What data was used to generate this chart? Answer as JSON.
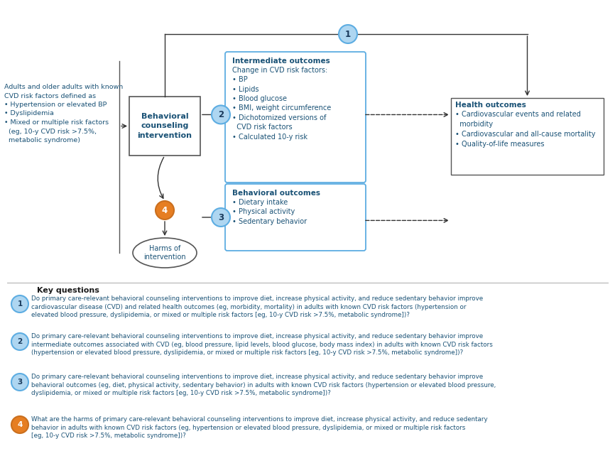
{
  "bg_color": "#ffffff",
  "text_color_blue": "#1a5276",
  "text_color_dark": "#1a1a1a",
  "circle_blue_fill": "#aed6f1",
  "circle_blue_edge": "#5dade2",
  "circle_orange_fill": "#e67e22",
  "circle_orange_edge": "#ca6f1e",
  "box_edge_blue": "#5dade2",
  "box_edge_dark": "#555555",
  "kq_title": "Key questions",
  "population_text": "Adults and older adults with known\nCVD risk factors defined as\n• Hypertension or elevated BP\n• Dyslipidemia\n• Mixed or multiple risk factors\n  (eg, 10-y CVD risk >7.5%,\n  metabolic syndrome)",
  "intervention_text": "Behavioral\ncounseling\nintervention",
  "intermediate_title": "Intermediate outcomes",
  "intermediate_body": "Change in CVD risk factors:\n• BP\n• Lipids\n• Blood glucose\n• BMI, weight circumference\n• Dichotomized versions of\n  CVD risk factors\n• Calculated 10-y risk",
  "behavioral_title": "Behavioral outcomes",
  "behavioral_body": "• Dietary intake\n• Physical activity\n• Sedentary behavior",
  "health_title": "Health outcomes",
  "health_body": "• Cardiovascular events and related\n  morbidity\n• Cardiovascular and all-cause mortality\n• Quality-of-life measures",
  "harms_text": "Harms of\nintervention",
  "kq1_text": "Do primary care-relevant behavioral counseling interventions to improve diet, increase physical activity, and reduce sedentary behavior improve\ncardiovascular disease (CVD) and related health outcomes (eg, morbidity, mortality) in adults with known CVD risk factors (hypertension or\nelevated blood pressure, dyslipidemia, or mixed or multiple risk factors [eg, 10-y CVD risk >7.5%, metabolic syndrome])?",
  "kq2_text": "Do primary care-relevant behavioral counseling interventions to improve diet, increase physical activity, and reduce sedentary behavior improve\nintermediate outcomes associated with CVD (eg, blood pressure, lipid levels, blood glucose, body mass index) in adults with known CVD risk factors\n(hypertension or elevated blood pressure, dyslipidemia, or mixed or multiple risk factors [eg, 10-y CVD risk >7.5%, metabolic syndrome])?",
  "kq3_text": "Do primary care-relevant behavioral counseling interventions to improve diet, increase physical activity, and reduce sedentary behavior improve\nbehavioral outcomes (eg, diet, physical activity, sedentary behavior) in adults with known CVD risk factors (hypertension or elevated blood pressure,\ndyslipidemia, or mixed or multiple risk factors [eg, 10-y CVD risk >7.5%, metabolic syndrome])?",
  "kq4_text": "What are the harms of primary care-relevant behavioral counseling interventions to improve diet, increase physical activity, and reduce sedentary\nbehavior in adults with known CVD risk factors (eg, hypertension or elevated blood pressure, dyslipidemia, or mixed or multiple risk factors\n[eg, 10-y CVD risk >7.5%, metabolic syndrome])?"
}
